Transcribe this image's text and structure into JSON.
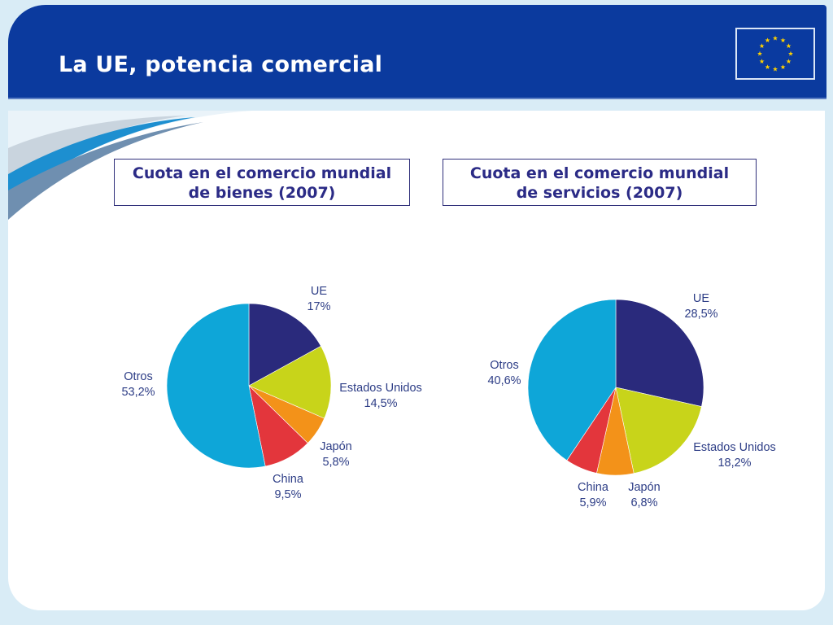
{
  "header": {
    "title": "La UE, potencia comercial"
  },
  "flag": {
    "icon": "eu-flag-icon",
    "colors": {
      "background": "#0a3aa0",
      "stars": "#ffd200"
    }
  },
  "colors": {
    "header_bg": "#0b3a9e",
    "slice_ue": "#2a2a7c",
    "slice_usa": "#c8d41a",
    "slice_japon": "#f39219",
    "slice_china": "#e3363c",
    "slice_otros": "#0ea6d8"
  },
  "chart_data": [
    {
      "type": "pie",
      "title_line1": "Cuota en el comercio mundial",
      "title_line2": "de bienes (2007)",
      "categories": [
        "UE",
        "Estados Unidos",
        "Japón",
        "China",
        "Otros"
      ],
      "values": [
        17,
        14.5,
        5.8,
        9.5,
        53.2
      ],
      "value_labels": [
        "17%",
        "14,5%",
        "5,8%",
        "9,5%",
        "53,2%"
      ]
    },
    {
      "type": "pie",
      "title_line1": "Cuota en el comercio mundial",
      "title_line2": "de servicios (2007)",
      "categories": [
        "UE",
        "Estados Unidos",
        "Japón",
        "China",
        "Otros"
      ],
      "values": [
        28.5,
        18.2,
        6.8,
        5.9,
        40.6
      ],
      "value_labels": [
        "28,5%",
        "18,2%",
        "6,8%",
        "5,9%",
        "40,6%"
      ]
    }
  ]
}
